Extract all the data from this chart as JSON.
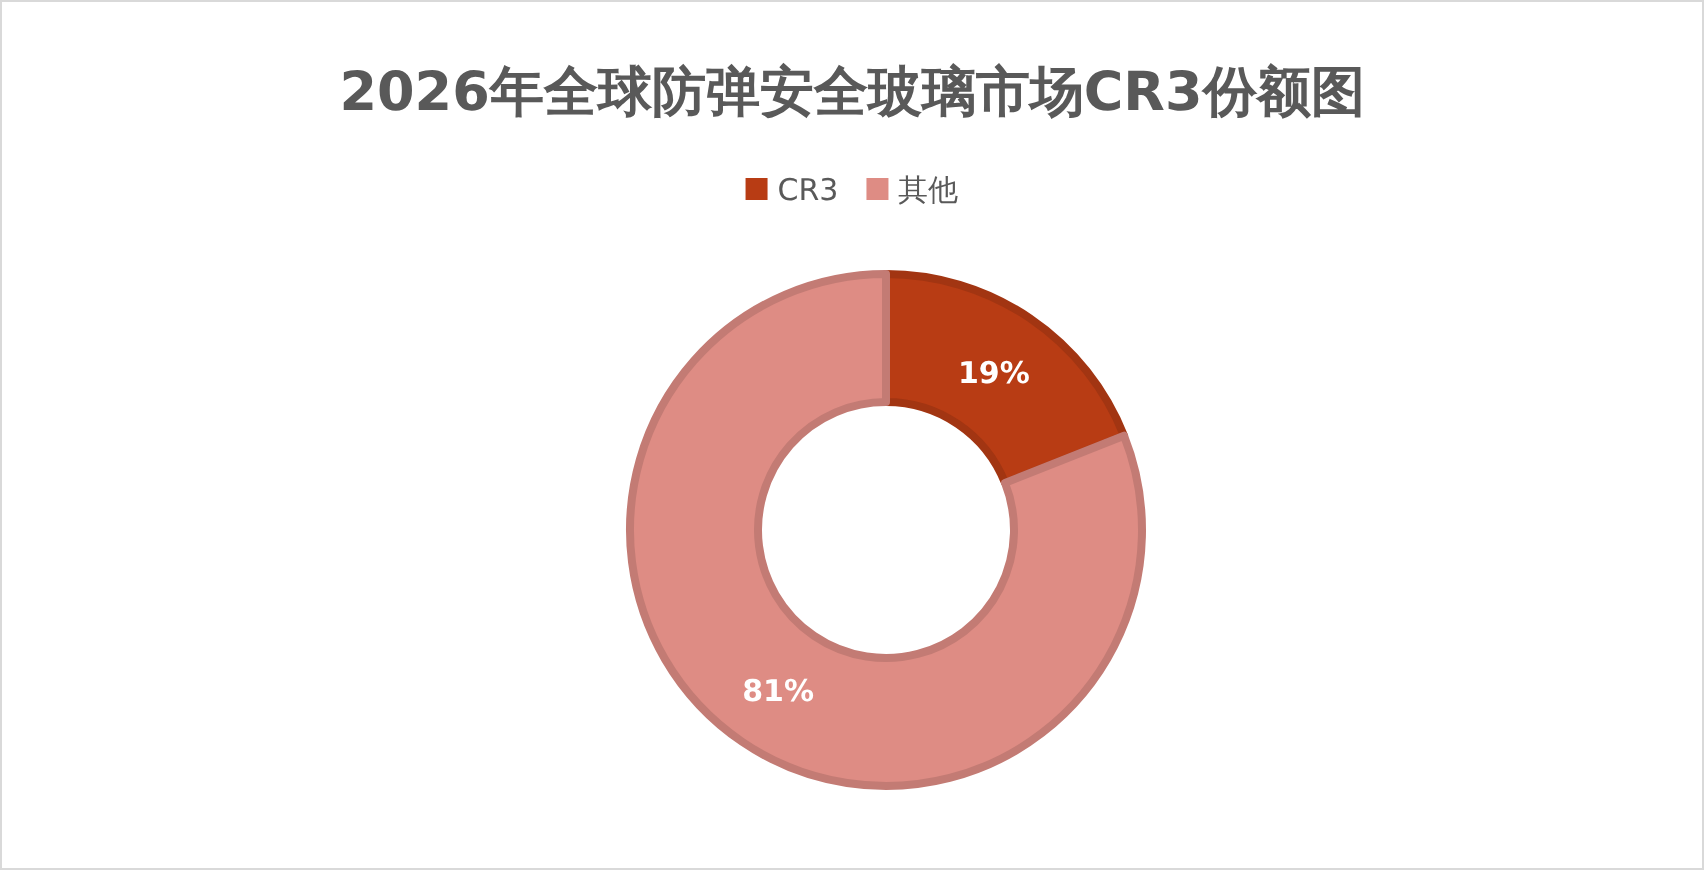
{
  "chart_data": {
    "type": "donut",
    "title": "2026年全球防弹安全玻璃市场CR3份额图",
    "categories": [
      "CR3",
      "其他"
    ],
    "values": [
      19,
      81
    ],
    "colors": [
      "#b83c14",
      "#de8c84"
    ],
    "value_labels": [
      "19%",
      "81%"
    ],
    "legend": "top"
  }
}
